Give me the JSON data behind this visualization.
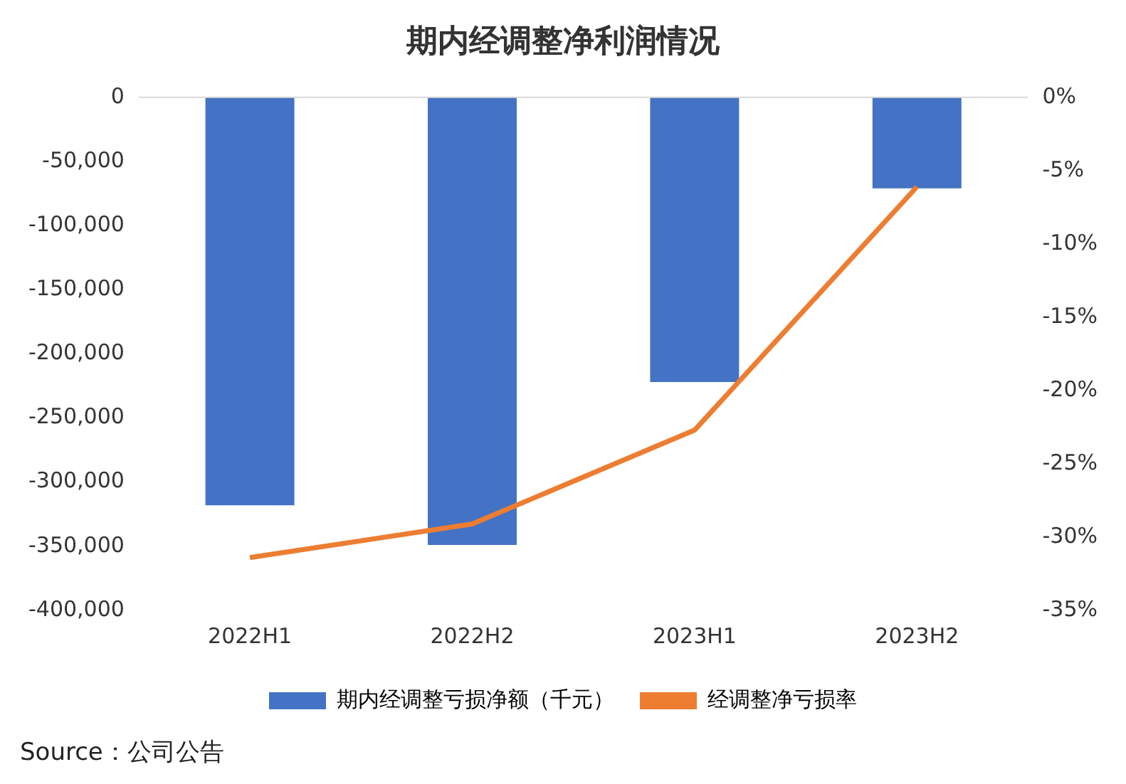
{
  "chart_data": {
    "type": "bar",
    "title": "期内经调整净利润情况",
    "categories": [
      "2022H1",
      "2022H2",
      "2023H1",
      "2023H2"
    ],
    "series": [
      {
        "name": "期内经调整亏损净额（千元）",
        "color": "#4472c4",
        "values": [
          -318000,
          -349000,
          -222000,
          -71000
        ]
      },
      {
        "name": "经调整净亏损率",
        "type": "line",
        "axis": "y2",
        "color": "#ed7d31",
        "values": [
          -31.4,
          -29.1,
          -22.7,
          -6.1
        ]
      }
    ],
    "ylim": [
      -400000,
      0
    ],
    "yticks": [
      {
        "value": -400000,
        "label": "-400,000"
      },
      {
        "value": -350000,
        "label": "-350,000"
      },
      {
        "value": -300000,
        "label": "-300,000"
      },
      {
        "value": -250000,
        "label": "-250,000"
      },
      {
        "value": -200000,
        "label": "-200,000"
      },
      {
        "value": -150000,
        "label": "-150,000"
      },
      {
        "value": -100000,
        "label": "-100,000"
      },
      {
        "value": -50000,
        "label": "-50,000"
      },
      0
    ],
    "y2lim": [
      -35,
      0
    ],
    "y2ticks": [
      {
        "value": -35,
        "label": "-35%"
      },
      {
        "value": -30,
        "label": "-30%"
      },
      {
        "value": -25,
        "label": "-25%"
      },
      {
        "value": -20,
        "label": "-20%"
      },
      {
        "value": -15,
        "label": "-15%"
      },
      {
        "value": -10,
        "label": "-10%"
      },
      {
        "value": -5,
        "label": "-5%"
      },
      {
        "value": 0,
        "label": "0%"
      }
    ],
    "grid": false,
    "legend": "bottom",
    "marker": "none",
    "annotations": [
      "Source：公司公告"
    ]
  }
}
